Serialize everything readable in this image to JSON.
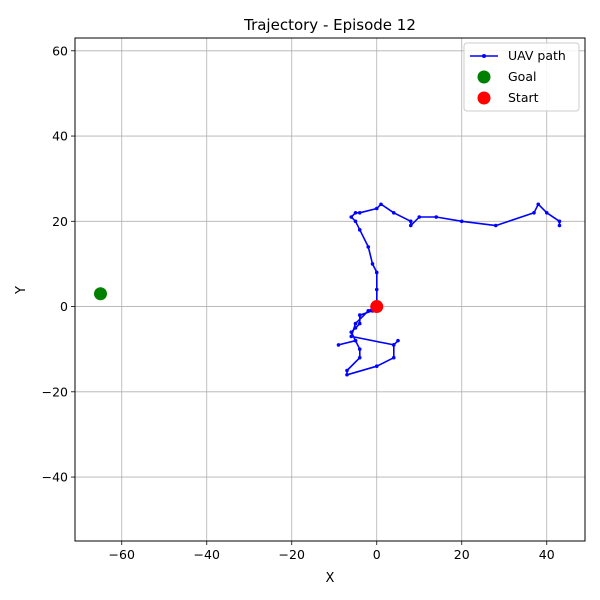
{
  "chart_data": {
    "type": "line",
    "title": "Trajectory - Episode 12",
    "xlabel": "X",
    "ylabel": "Y",
    "xlim": [
      -71,
      49
    ],
    "ylim": [
      -55,
      63
    ],
    "xticks": [
      -60,
      -40,
      -20,
      0,
      20,
      40
    ],
    "yticks": [
      -40,
      -20,
      0,
      20,
      40,
      60
    ],
    "grid": true,
    "legend_position": "upper-right",
    "series": [
      {
        "name": "UAV path",
        "color": "#0000ff",
        "x": [
          0,
          -1,
          -4,
          -4,
          -5,
          -6,
          -5,
          -9,
          -5,
          -4,
          -4,
          -7,
          -7,
          0,
          4,
          4,
          5,
          4,
          -6,
          -5,
          -2,
          0,
          0,
          0,
          -1,
          -2,
          -4,
          -5,
          -6,
          -5,
          -4,
          0,
          1,
          4,
          8,
          8,
          10,
          14,
          20,
          28,
          37,
          38,
          40,
          43,
          43
        ],
        "y": [
          0,
          -1,
          -2,
          -4,
          -5,
          -6,
          -8,
          -9,
          -8,
          -10,
          -12,
          -15,
          -16,
          -14,
          -12,
          -9,
          -8,
          -9,
          -7,
          -4,
          -1,
          0,
          4,
          8,
          10,
          14,
          18,
          20,
          21,
          22,
          22,
          23,
          24,
          22,
          20,
          19,
          21,
          21,
          20,
          19,
          22,
          24,
          22,
          20,
          19
        ]
      }
    ],
    "points": [
      {
        "name": "Goal",
        "color": "#008000",
        "x": -65,
        "y": 3
      },
      {
        "name": "Start",
        "color": "#ff0000",
        "x": 0,
        "y": 0
      }
    ]
  }
}
